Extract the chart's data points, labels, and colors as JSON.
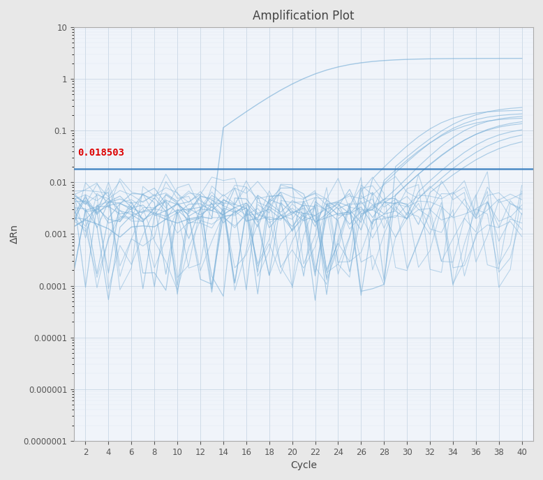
{
  "title": "Amplification Plot",
  "xlabel": "Cycle",
  "ylabel": "ΔRn",
  "xlim": [
    1,
    41
  ],
  "ylim_log": [
    1e-07,
    10
  ],
  "threshold_value": 0.018503,
  "threshold_label": "0.018503",
  "plot_bg_color": "#f0f4fa",
  "fig_bg_color": "#e8e8e8",
  "grid_major_color": "#c0d0e0",
  "grid_minor_color": "#d8e4ee",
  "line_color": "#7ab0d8",
  "threshold_line_color": "#3a7fbf",
  "threshold_text_color": "#dd0000",
  "title_fontsize": 12,
  "axis_label_fontsize": 10,
  "tick_fontsize": 8.5,
  "n_baseline": 12,
  "n_late_amplified": 10,
  "seed": 7
}
